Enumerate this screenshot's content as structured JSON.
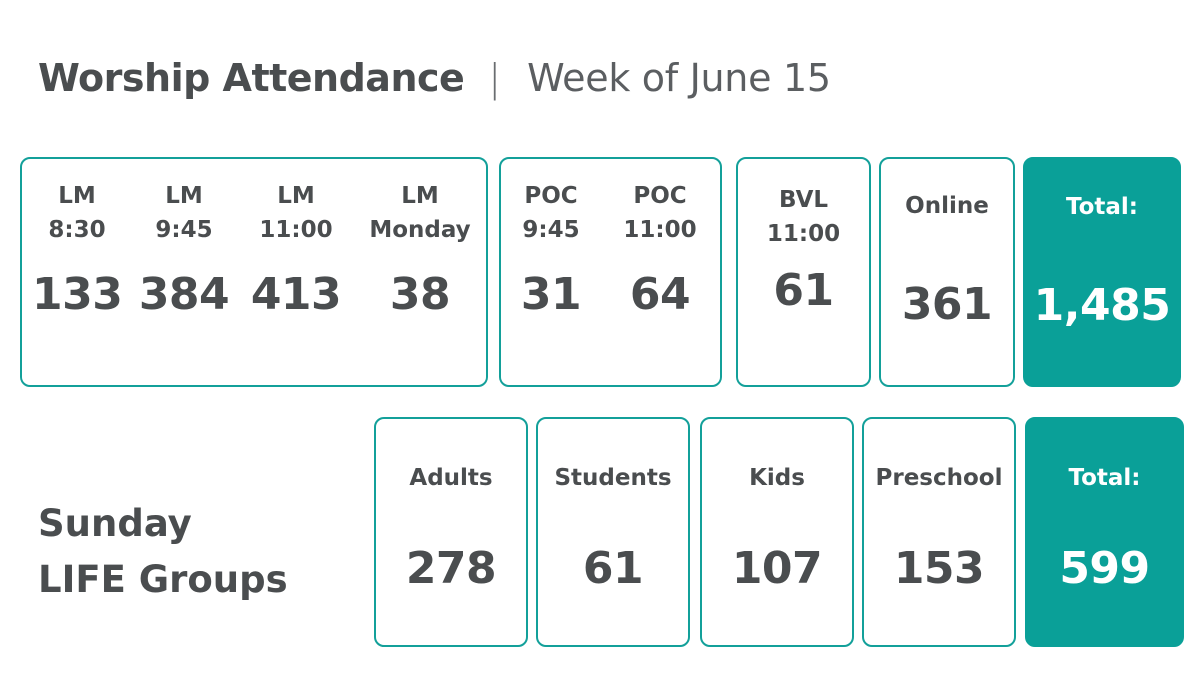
{
  "header": {
    "title": "Worship Attendance",
    "separator": "|",
    "subtitle": "Week of June 15"
  },
  "worship": {
    "lm": {
      "cols": [
        {
          "label1": "LM",
          "label2": "8:30",
          "value": "133"
        },
        {
          "label1": "LM",
          "label2": "9:45",
          "value": "384"
        },
        {
          "label1": "LM",
          "label2": "11:00",
          "value": "413"
        },
        {
          "label1": "LM",
          "label2": "Monday",
          "value": "38"
        }
      ]
    },
    "poc": {
      "cols": [
        {
          "label1": "POC",
          "label2": "9:45",
          "value": "31"
        },
        {
          "label1": "POC",
          "label2": "11:00",
          "value": "64"
        }
      ]
    },
    "bvl": {
      "label1": "BVL",
      "label2": "11:00",
      "value": "61"
    },
    "online": {
      "label": "Online",
      "value": "361"
    },
    "total": {
      "label": "Total:",
      "value": "1,485"
    }
  },
  "life_groups": {
    "title_line1": "Sunday",
    "title_line2": "LIFE Groups",
    "cols": [
      {
        "label": "Adults",
        "value": "278"
      },
      {
        "label": "Students",
        "value": "61"
      },
      {
        "label": "Kids",
        "value": "107"
      },
      {
        "label": "Preschool",
        "value": "153"
      }
    ],
    "total": {
      "label": "Total:",
      "value": "599"
    }
  },
  "colors": {
    "accent": "#0aa098",
    "text": "#4a4d4f"
  }
}
